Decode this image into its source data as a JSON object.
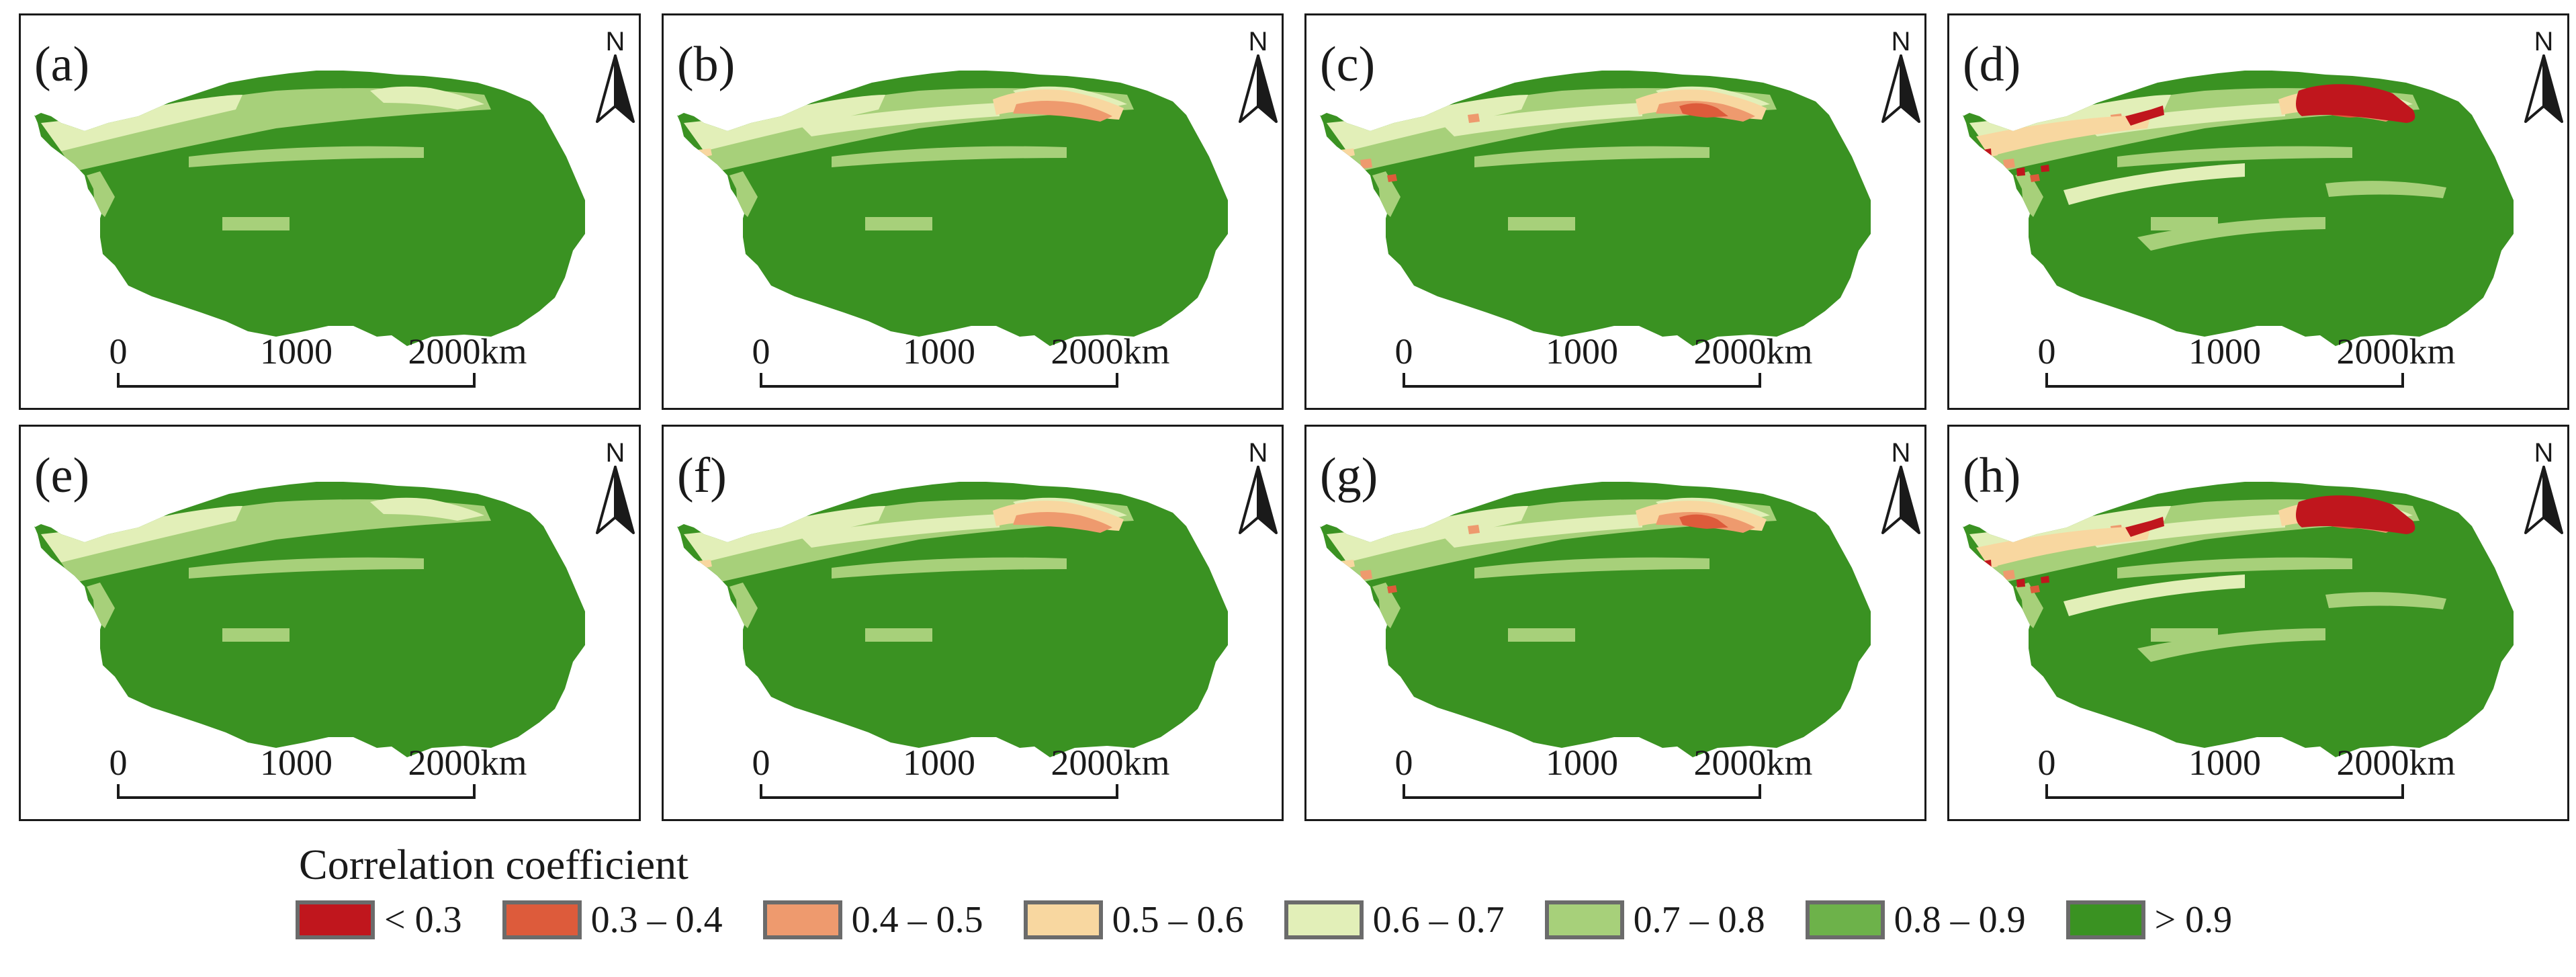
{
  "figure": {
    "panels": [
      {
        "label": "(a)",
        "north": "N",
        "scale_ticks": [
          "0",
          "1000",
          "2000km"
        ],
        "variant": 0
      },
      {
        "label": "(b)",
        "north": "N",
        "scale_ticks": [
          "0",
          "1000",
          "2000km"
        ],
        "variant": 1
      },
      {
        "label": "(c)",
        "north": "N",
        "scale_ticks": [
          "0",
          "1000",
          "2000km"
        ],
        "variant": 2
      },
      {
        "label": "(d)",
        "north": "N",
        "scale_ticks": [
          "0",
          "1000",
          "2000km"
        ],
        "variant": 3
      },
      {
        "label": "(e)",
        "north": "N",
        "scale_ticks": [
          "0",
          "1000",
          "2000km"
        ],
        "variant": 0
      },
      {
        "label": "(f)",
        "north": "N",
        "scale_ticks": [
          "0",
          "1000",
          "2000km"
        ],
        "variant": 1
      },
      {
        "label": "(g)",
        "north": "N",
        "scale_ticks": [
          "0",
          "1000",
          "2000km"
        ],
        "variant": 2
      },
      {
        "label": "(h)",
        "north": "N",
        "scale_ticks": [
          "0",
          "1000",
          "2000km"
        ],
        "variant": 3
      }
    ]
  },
  "legend": {
    "title": "Correlation coefficient",
    "classes": [
      {
        "label": "< 0.3",
        "color": "#c0161d"
      },
      {
        "label": "0.3 – 0.4",
        "color": "#dd5b3b"
      },
      {
        "label": "0.4 – 0.5",
        "color": "#ee9a6e"
      },
      {
        "label": "0.5 – 0.6",
        "color": "#f8d7a0"
      },
      {
        "label": "0.6 – 0.7",
        "color": "#e2efb8"
      },
      {
        "label": "0.7 – 0.8",
        "color": "#a7d07a"
      },
      {
        "label": "0.8 – 0.9",
        "color": "#6db24a"
      },
      {
        "label": "> 0.9",
        "color": "#3a9222"
      }
    ]
  }
}
